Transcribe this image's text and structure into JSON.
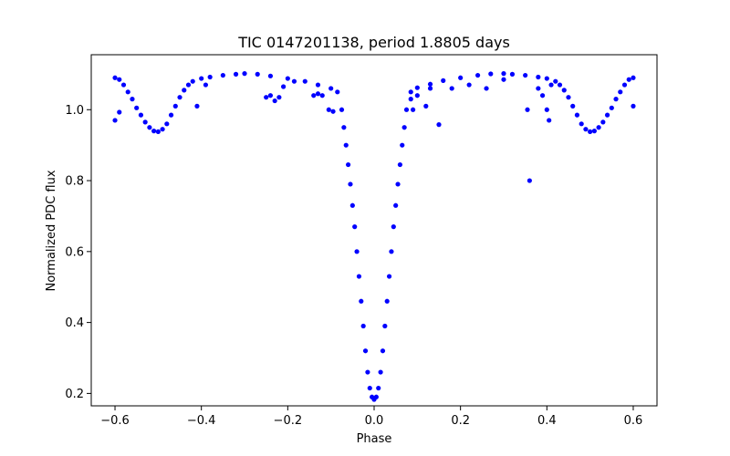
{
  "chart_data": {
    "type": "scatter",
    "title": "TIC 0147201138, period 1.8805 days",
    "xlabel": "Phase",
    "ylabel": "Normalized PDC flux",
    "xlim": [
      -0.655,
      0.655
    ],
    "ylim": [
      0.165,
      1.155
    ],
    "xticks": [
      -0.6,
      -0.4,
      -0.2,
      0.0,
      0.2,
      0.4,
      0.6
    ],
    "xtick_labels": [
      "−0.6",
      "−0.4",
      "−0.2",
      "0.0",
      "0.2",
      "0.4",
      "0.6"
    ],
    "yticks": [
      0.2,
      0.4,
      0.6,
      0.8,
      1.0
    ],
    "ytick_labels": [
      "0.2",
      "0.4",
      "0.6",
      "0.8",
      "1.0"
    ],
    "grid": false,
    "marker_color": "#0000ff",
    "series": [
      {
        "points": [
          [
            -0.6,
            1.09
          ],
          [
            -0.59,
            1.085
          ],
          [
            -0.58,
            1.07
          ],
          [
            -0.57,
            1.05
          ],
          [
            -0.56,
            1.03
          ],
          [
            -0.55,
            1.005
          ],
          [
            -0.54,
            0.985
          ],
          [
            -0.53,
            0.965
          ],
          [
            -0.52,
            0.95
          ],
          [
            -0.51,
            0.94
          ],
          [
            -0.5,
            0.938
          ],
          [
            -0.49,
            0.945
          ],
          [
            -0.48,
            0.96
          ],
          [
            -0.47,
            0.985
          ],
          [
            -0.46,
            1.01
          ],
          [
            -0.45,
            1.035
          ],
          [
            -0.44,
            1.055
          ],
          [
            -0.43,
            1.07
          ],
          [
            -0.42,
            1.08
          ],
          [
            -0.4,
            1.088
          ],
          [
            -0.38,
            1.092
          ],
          [
            -0.35,
            1.097
          ],
          [
            -0.32,
            1.1
          ],
          [
            -0.3,
            1.102
          ],
          [
            -0.27,
            1.1
          ],
          [
            -0.24,
            1.095
          ],
          [
            -0.2,
            1.088
          ],
          [
            -0.16,
            1.08
          ],
          [
            -0.13,
            1.07
          ],
          [
            -0.1,
            1.06
          ],
          [
            -0.085,
            1.05
          ],
          [
            -0.075,
            1.0
          ],
          [
            -0.07,
            0.95
          ],
          [
            -0.065,
            0.9
          ],
          [
            -0.06,
            0.845
          ],
          [
            -0.055,
            0.79
          ],
          [
            -0.05,
            0.73
          ],
          [
            -0.045,
            0.67
          ],
          [
            -0.04,
            0.6
          ],
          [
            -0.035,
            0.53
          ],
          [
            -0.03,
            0.46
          ],
          [
            -0.025,
            0.39
          ],
          [
            -0.02,
            0.32
          ],
          [
            -0.015,
            0.26
          ],
          [
            -0.01,
            0.215
          ],
          [
            -0.005,
            0.19
          ],
          [
            0.0,
            0.183
          ],
          [
            0.005,
            0.19
          ],
          [
            0.01,
            0.215
          ],
          [
            0.015,
            0.26
          ],
          [
            0.02,
            0.32
          ],
          [
            0.025,
            0.39
          ],
          [
            0.03,
            0.46
          ],
          [
            0.035,
            0.53
          ],
          [
            0.04,
            0.6
          ],
          [
            0.045,
            0.67
          ],
          [
            0.05,
            0.73
          ],
          [
            0.055,
            0.79
          ],
          [
            0.06,
            0.845
          ],
          [
            0.065,
            0.9
          ],
          [
            0.07,
            0.95
          ],
          [
            0.075,
            1.0
          ],
          [
            0.085,
            1.05
          ],
          [
            0.1,
            1.062
          ],
          [
            0.13,
            1.072
          ],
          [
            0.16,
            1.082
          ],
          [
            0.2,
            1.09
          ],
          [
            0.24,
            1.097
          ],
          [
            0.27,
            1.101
          ],
          [
            0.3,
            1.102
          ],
          [
            0.32,
            1.1
          ],
          [
            0.35,
            1.097
          ],
          [
            0.38,
            1.092
          ],
          [
            0.4,
            1.088
          ],
          [
            0.42,
            1.08
          ],
          [
            0.43,
            1.07
          ],
          [
            0.44,
            1.055
          ],
          [
            0.45,
            1.035
          ],
          [
            0.46,
            1.01
          ],
          [
            0.47,
            0.985
          ],
          [
            0.48,
            0.96
          ],
          [
            0.49,
            0.945
          ],
          [
            0.5,
            0.938
          ],
          [
            0.51,
            0.94
          ],
          [
            0.52,
            0.95
          ],
          [
            0.53,
            0.965
          ],
          [
            0.54,
            0.985
          ],
          [
            0.55,
            1.005
          ],
          [
            0.56,
            1.03
          ],
          [
            0.57,
            1.05
          ],
          [
            0.58,
            1.07
          ],
          [
            0.59,
            1.085
          ],
          [
            0.6,
            1.09
          ],
          [
            -0.6,
            0.97
          ],
          [
            -0.59,
            0.993
          ],
          [
            -0.41,
            1.01
          ],
          [
            -0.39,
            1.07
          ],
          [
            -0.25,
            1.035
          ],
          [
            -0.24,
            1.04
          ],
          [
            -0.23,
            1.025
          ],
          [
            -0.22,
            1.035
          ],
          [
            -0.21,
            1.065
          ],
          [
            -0.185,
            1.08
          ],
          [
            -0.14,
            1.04
          ],
          [
            -0.13,
            1.045
          ],
          [
            -0.12,
            1.04
          ],
          [
            -0.105,
            1.0
          ],
          [
            -0.095,
            0.995
          ],
          [
            0.085,
            1.03
          ],
          [
            0.09,
            1.0
          ],
          [
            0.1,
            1.04
          ],
          [
            0.12,
            1.01
          ],
          [
            0.13,
            1.06
          ],
          [
            0.15,
            0.958
          ],
          [
            0.18,
            1.06
          ],
          [
            0.22,
            1.07
          ],
          [
            0.26,
            1.06
          ],
          [
            0.3,
            1.085
          ],
          [
            0.355,
            1.0
          ],
          [
            0.36,
            0.8
          ],
          [
            0.38,
            1.06
          ],
          [
            0.39,
            1.04
          ],
          [
            0.4,
            1.0
          ],
          [
            0.405,
            0.97
          ],
          [
            0.41,
            1.07
          ],
          [
            0.6,
            1.01
          ]
        ]
      }
    ]
  }
}
